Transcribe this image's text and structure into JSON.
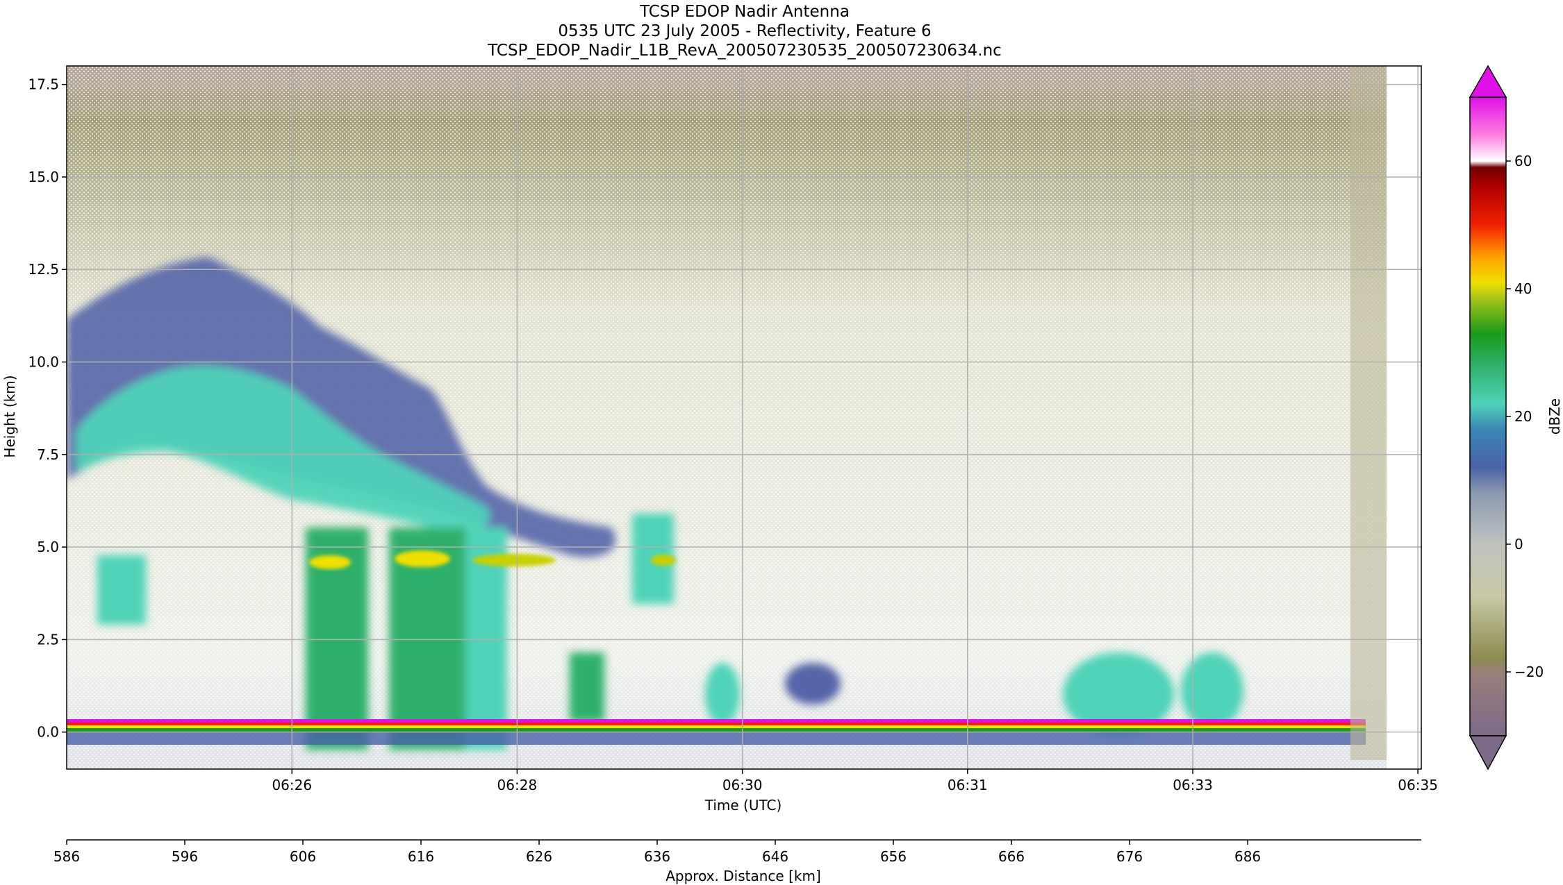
{
  "chart_data": {
    "type": "heatmap",
    "title": [
      "TCSP EDOP Nadir Antenna",
      "0535 UTC 23 July 2005 - Reflectivity, Feature 6",
      "TCSP_EDOP_Nadir_L1B_RevA_200507230535_200507230634.nc"
    ],
    "xlabel": "Time (UTC)",
    "ylabel": "Height (km)",
    "x_ticks": [
      "06:26",
      "06:28",
      "06:30",
      "06:31",
      "06:33",
      "06:35"
    ],
    "y_ticks": [
      "0.0",
      "2.5",
      "5.0",
      "7.5",
      "10.0",
      "12.5",
      "15.0",
      "17.5"
    ],
    "ylim": [
      -1.0,
      18.0
    ],
    "grid": true,
    "colorbar": {
      "label": "dBZe",
      "ticks": [
        "60",
        "40",
        "20",
        "0",
        "−20"
      ],
      "range": [
        -30,
        70
      ],
      "extend": "both"
    },
    "secondary_xaxis": {
      "label": "Approx. Distance [km]",
      "ticks": [
        "586",
        "596",
        "606",
        "616",
        "626",
        "636",
        "646",
        "656",
        "666",
        "676",
        "686"
      ]
    },
    "features": [
      {
        "name": "anvil",
        "t_start": 0.0,
        "t_end": 0.27,
        "z_bottom": 7.5,
        "z_top": 12.5,
        "peak_dbz": 22
      },
      {
        "name": "convective-core-1",
        "t_center": 0.19,
        "z_top": 4.8,
        "peak_dbz": 40
      },
      {
        "name": "convective-core-2",
        "t_center": 0.26,
        "z_top": 4.8,
        "peak_dbz": 40
      },
      {
        "name": "convective-core-3",
        "t_center": 0.34,
        "z_top": 4.8,
        "peak_dbz": 38
      },
      {
        "name": "convective-core-4",
        "t_center": 0.44,
        "z_top": 5.3,
        "peak_dbz": 36
      },
      {
        "name": "shallow-cells",
        "t_start": 0.75,
        "t_end": 0.88,
        "z_top": 2.0,
        "peak_dbz": 28
      },
      {
        "name": "surface-return",
        "z": 0.0,
        "peak_dbz": 60
      }
    ]
  }
}
